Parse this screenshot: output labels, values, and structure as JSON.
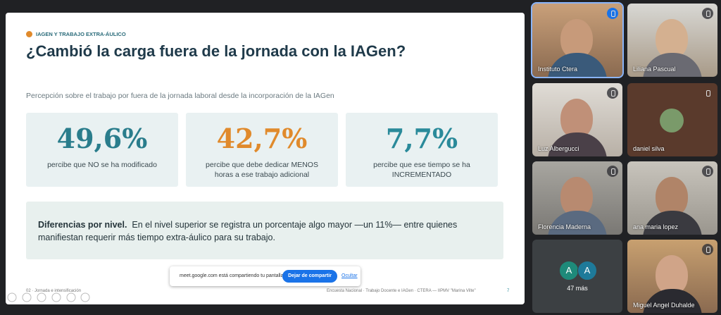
{
  "slide": {
    "section": "IAGEN Y TRABAJO EXTRA-ÁULICO",
    "title": "¿Cambió la carga fuera de la jornada con la IAGen?",
    "subtitle": "Percepción sobre el trabajo por fuera de la jornada laboral desde la incorporación de la IAGen",
    "cards": [
      {
        "value": "49,6%",
        "text": "percibe que NO se ha modificado"
      },
      {
        "value": "42,7%",
        "text": "percibe que debe dedicar MENOS horas a ese trabajo adicional"
      },
      {
        "value": "7,7%",
        "text": "percibe que ese tiempo se ha INCREMENTADO"
      }
    ],
    "note": {
      "heading": "Diferencias por nivel.",
      "text": "En el nivel superior se registra un porcentaje algo mayor —un 11%— entre quienes manifiestan requerir más tiempo extra-áulico para su trabajo."
    },
    "footer": {
      "left": "02 · Jornada e intensificación",
      "center": "Encuesta Nacional · Trabajo Docente e IAGen · CTERA — IIPMV \"Marina Vilte\"",
      "page": "7"
    }
  },
  "share_bar": {
    "message": "meet.google.com está compartiendo tu pantalla.",
    "stop": "Dejar de compartir",
    "hide": "Ocultar"
  },
  "participants": [
    "Instituto Ctera",
    "Liliana Pascual",
    "Luz Albergucci",
    "daniel silva",
    "Florencia Maderna",
    "ana maria lopez",
    "Miguel Angel Duhalde"
  ],
  "others": {
    "avatars": [
      "A",
      "A"
    ],
    "label": "47 más"
  }
}
